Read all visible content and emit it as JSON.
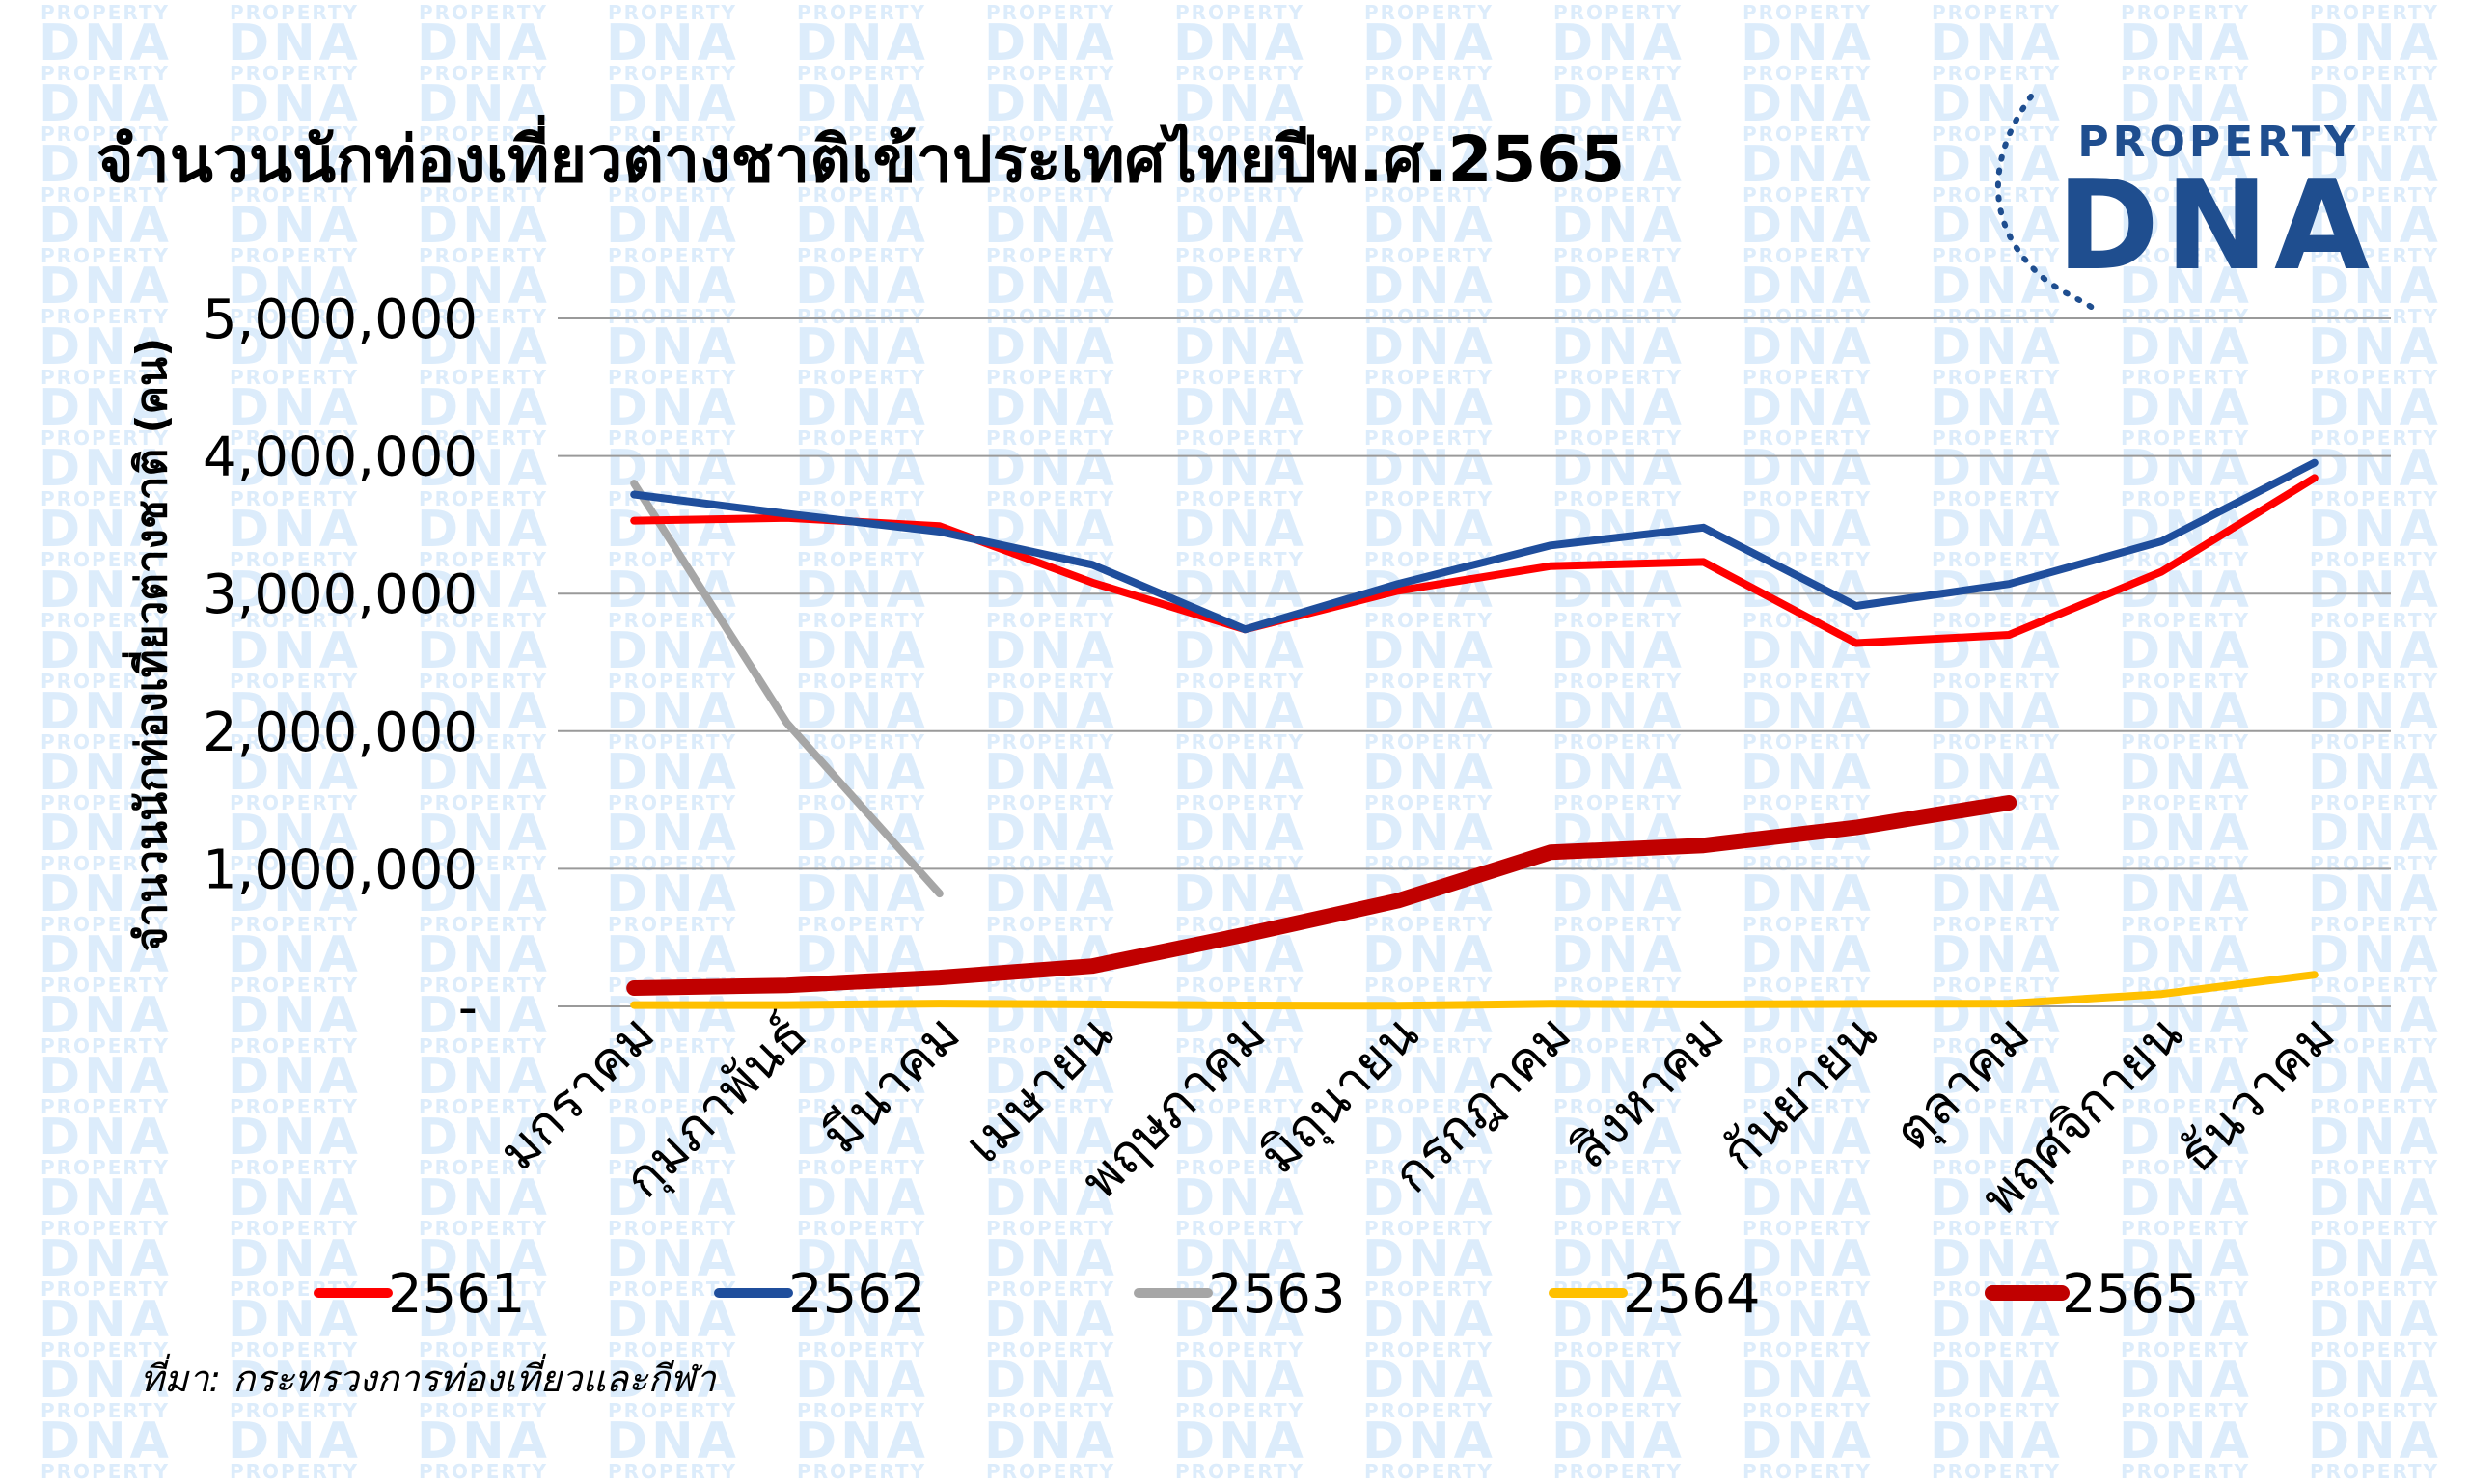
{
  "watermark": {
    "line1": "PROPERTY",
    "line2": "DNA",
    "color": "#dcecfb"
  },
  "logo": {
    "line1": "PROPERTY",
    "line2": "DNA",
    "color": "#1f4e8f"
  },
  "source_note": "ที่มา: กระทรวงการท่องเที่ยวและกีฬา",
  "chart_data": {
    "type": "line",
    "title": "จำนวนนักท่องเที่ยวต่างชาติเข้าประเทศไทยปีพ.ศ.2565",
    "xlabel": "",
    "ylabel": "จำนวนนักท่องเที่ยวต่างชาติ (คน)",
    "ylim": [
      0,
      5000000
    ],
    "yticks": [
      0,
      1000000,
      2000000,
      3000000,
      4000000,
      5000000
    ],
    "ytick_labels": [
      "-",
      "1,000,000",
      "2,000,000",
      "3,000,000",
      "4,000,000",
      "5,000,000"
    ],
    "grid": true,
    "legend_position": "bottom",
    "categories": [
      "มกราคม",
      "กุมภาพันธ์",
      "มีนาคม",
      "เมษายน",
      "พฤษภาคม",
      "มิถุนายน",
      "กรกฎาคม",
      "สิงหาคม",
      "กันยายน",
      "ตุลาคม",
      "พฤศจิกายน",
      "ธันวาคม"
    ],
    "series": [
      {
        "name": "2561",
        "color": "#ff0000",
        "values": [
          3530000,
          3550000,
          3490000,
          3080000,
          2740000,
          3020000,
          3200000,
          3230000,
          2640000,
          2700000,
          3160000,
          3840000
        ]
      },
      {
        "name": "2562",
        "color": "#1f4e9c",
        "values": [
          3720000,
          3580000,
          3450000,
          3210000,
          2740000,
          3070000,
          3350000,
          3480000,
          2910000,
          3070000,
          3380000,
          3950000
        ]
      },
      {
        "name": "2563",
        "color": "#a6a6a6",
        "values": [
          3800000,
          2060000,
          820000,
          null,
          null,
          null,
          null,
          null,
          null,
          null,
          null,
          null
        ]
      },
      {
        "name": "2564",
        "color": "#ffc000",
        "values": [
          10000,
          10000,
          20000,
          15000,
          7000,
          5000,
          19000,
          15000,
          18000,
          20000,
          90000,
          230000
        ]
      },
      {
        "name": "2565",
        "color": "#c00000",
        "values": [
          133000,
          153000,
          210000,
          293000,
          522000,
          768000,
          1120000,
          1170000,
          1300000,
          1480000,
          null,
          null
        ]
      }
    ]
  }
}
